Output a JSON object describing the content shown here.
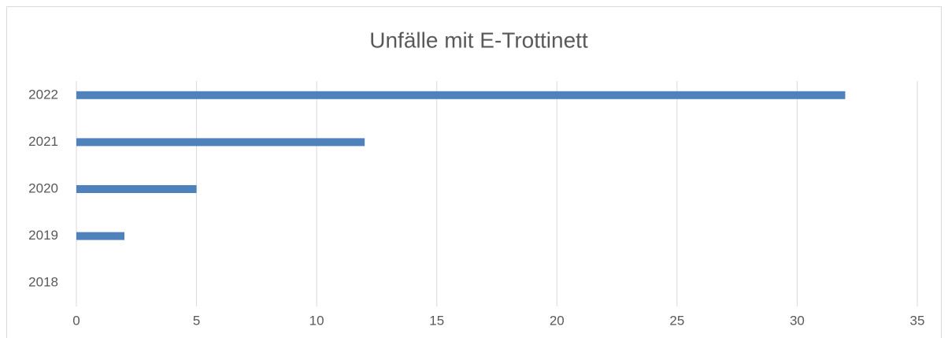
{
  "chart_data": {
    "type": "bar",
    "orientation": "horizontal",
    "title": "Unfälle mit E-Trottinett",
    "categories": [
      "2018",
      "2019",
      "2020",
      "2021",
      "2022"
    ],
    "values": [
      0,
      2,
      5,
      12,
      32
    ],
    "color": "#4f81bd",
    "xlim": [
      0,
      35
    ],
    "xticks": [
      0,
      5,
      10,
      15,
      20,
      25,
      30,
      35
    ],
    "grid": true
  }
}
